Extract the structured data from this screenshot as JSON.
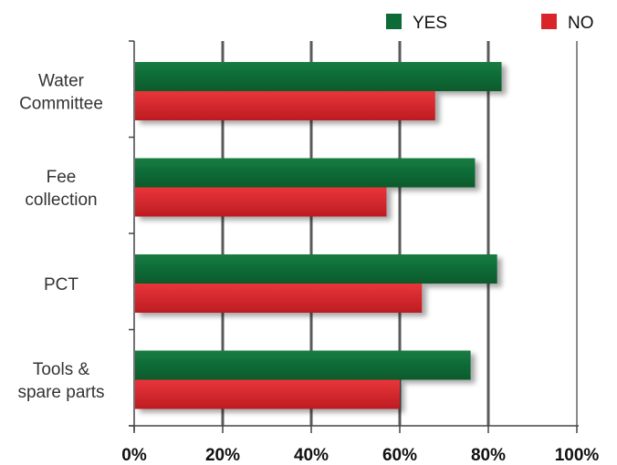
{
  "chart_data": {
    "type": "bar",
    "orientation": "horizontal",
    "categories": [
      [
        "Water",
        "Committee"
      ],
      [
        "Fee",
        "collection"
      ],
      [
        "PCT"
      ],
      [
        "Tools &",
        "spare parts"
      ]
    ],
    "series": [
      {
        "name": "YES",
        "color": "#0d6b35",
        "values": [
          83,
          77,
          82,
          76
        ]
      },
      {
        "name": "NO",
        "color": "#d9242a",
        "values": [
          68,
          57,
          65,
          60
        ]
      }
    ],
    "xlim": [
      0,
      100
    ],
    "xticks": [
      "0%",
      "20%",
      "40%",
      "60%",
      "80%",
      "100%"
    ],
    "title": "",
    "xlabel": "",
    "ylabel": "",
    "grid": true,
    "legend": "top-right"
  }
}
